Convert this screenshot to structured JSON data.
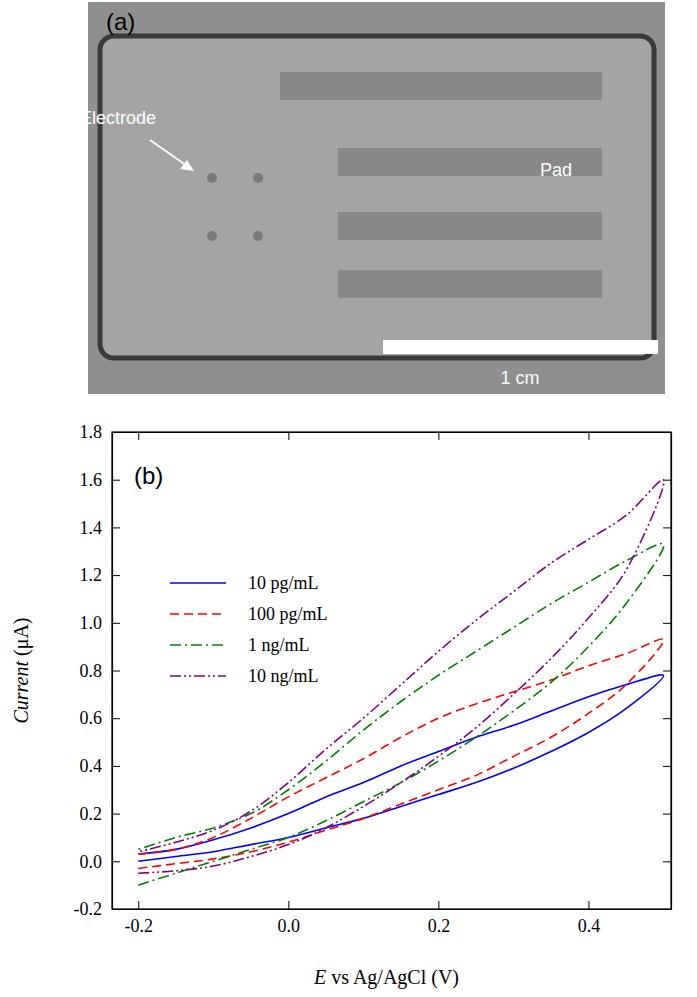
{
  "image": {
    "label": "(a)",
    "annotations": [
      "Electrode",
      "Pad"
    ],
    "scale_bar": "1 cm"
  },
  "chart_data": {
    "type": "line",
    "title": "(b)",
    "x_label": "E vs Ag/AgCl (V)",
    "y_label": "Current (μA)",
    "xlim": [
      -0.235,
      0.51
    ],
    "xticks": [
      -0.2,
      {
        "value": 0,
        "label": "0.0"
      },
      0.2,
      0.4
    ],
    "ylim": [
      -0.2,
      1.8
    ],
    "yticks": [
      -0.2,
      {
        "value": 0,
        "label": "0.0"
      },
      0.2,
      0.4,
      0.6,
      0.8,
      {
        "value": 1,
        "label": "1.0"
      },
      1.2,
      1.4,
      1.6,
      1.8
    ],
    "legend": "upper left",
    "x": [
      -0.2,
      -0.15,
      -0.1,
      -0.05,
      0,
      0.05,
      0.1,
      0.15,
      0.2,
      0.25,
      0.3,
      0.35,
      0.4,
      0.45,
      0.5,
      0.45,
      0.4,
      0.35,
      0.3,
      0.25,
      0.2,
      0.15,
      0.1,
      0.05,
      0,
      -0.05,
      -0.1,
      -0.15,
      -0.2
    ],
    "series": [
      {
        "name": "10 pg/mL",
        "color": "#0000ff",
        "line_style": "solid",
        "values": [
          0.0,
          0.02,
          0.04,
          0.07,
          0.1,
          0.14,
          0.18,
          0.23,
          0.28,
          0.33,
          0.39,
          0.46,
          0.54,
          0.64,
          0.78,
          0.74,
          0.69,
          0.63,
          0.57,
          0.52,
          0.46,
          0.4,
          0.33,
          0.27,
          0.2,
          0.14,
          0.09,
          0.05,
          0.03
        ]
      },
      {
        "name": "100 pg/mL",
        "color": "#ff0000",
        "line_style": "dashed",
        "values": [
          -0.03,
          -0.01,
          0.01,
          0.04,
          0.08,
          0.13,
          0.18,
          0.24,
          0.3,
          0.36,
          0.44,
          0.52,
          0.62,
          0.74,
          0.93,
          0.87,
          0.82,
          0.76,
          0.71,
          0.66,
          0.6,
          0.52,
          0.43,
          0.35,
          0.27,
          0.18,
          0.1,
          0.05,
          0.03
        ]
      },
      {
        "name": "1 ng/mL",
        "color": "#008000",
        "line_style": "dashdot",
        "values": [
          -0.1,
          -0.05,
          0.0,
          0.05,
          0.1,
          0.17,
          0.25,
          0.33,
          0.42,
          0.52,
          0.63,
          0.75,
          0.9,
          1.08,
          1.33,
          1.26,
          1.17,
          1.08,
          0.98,
          0.88,
          0.78,
          0.67,
          0.55,
          0.42,
          0.3,
          0.2,
          0.14,
          0.1,
          0.05
        ]
      },
      {
        "name": "10 ng/mL",
        "color": "#800080",
        "line_style": "dashdotdot",
        "values": [
          -0.05,
          -0.04,
          -0.02,
          0.02,
          0.07,
          0.14,
          0.23,
          0.33,
          0.44,
          0.56,
          0.7,
          0.85,
          1.02,
          1.22,
          1.6,
          1.45,
          1.35,
          1.25,
          1.13,
          1.01,
          0.88,
          0.74,
          0.6,
          0.47,
          0.33,
          0.21,
          0.13,
          0.08,
          0.04
        ]
      }
    ]
  }
}
